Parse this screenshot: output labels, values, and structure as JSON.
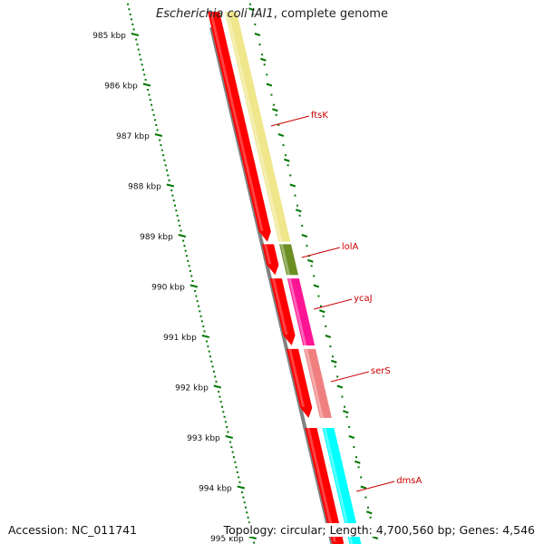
{
  "title": {
    "organism": "Escherichia coli IAI1",
    "suffix": ", complete genome"
  },
  "ticks": [
    {
      "kbp": 985,
      "label": "985 kbp"
    },
    {
      "kbp": 986,
      "label": "986 kbp"
    },
    {
      "kbp": 987,
      "label": "987 kbp"
    },
    {
      "kbp": 988,
      "label": "988 kbp"
    },
    {
      "kbp": 989,
      "label": "989 kbp"
    },
    {
      "kbp": 990,
      "label": "990 kbp"
    },
    {
      "kbp": 991,
      "label": "991 kbp"
    },
    {
      "kbp": 992,
      "label": "992 kbp"
    },
    {
      "kbp": 993,
      "label": "993 kbp"
    },
    {
      "kbp": 994,
      "label": "994 kbp"
    },
    {
      "kbp": 995,
      "label": "995 kbp"
    }
  ],
  "genes": [
    {
      "name": "ftsK",
      "start_kbp": 984.55,
      "end_kbp": 989.12,
      "color": "#f0e68c"
    },
    {
      "name": "lolA",
      "start_kbp": 989.17,
      "end_kbp": 989.78,
      "color": "#6b8e23"
    },
    {
      "name": "ycaJ",
      "start_kbp": 989.85,
      "end_kbp": 991.18,
      "color": "#ff1493"
    },
    {
      "name": "serS",
      "start_kbp": 991.25,
      "end_kbp": 992.62,
      "color": "#f08080"
    },
    {
      "name": "dmsA",
      "start_kbp": 992.82,
      "end_kbp": 995.3,
      "color": "#00ffff"
    }
  ],
  "cds_color": "#ff0000",
  "backbone_color": "#808080",
  "tick_color": "#007700",
  "label_color": "#cc0000",
  "footer": {
    "accession": "Accession: NC_011741",
    "topology": "Topology: circular; Length: 4,700,560 bp; Genes: 4,546"
  }
}
